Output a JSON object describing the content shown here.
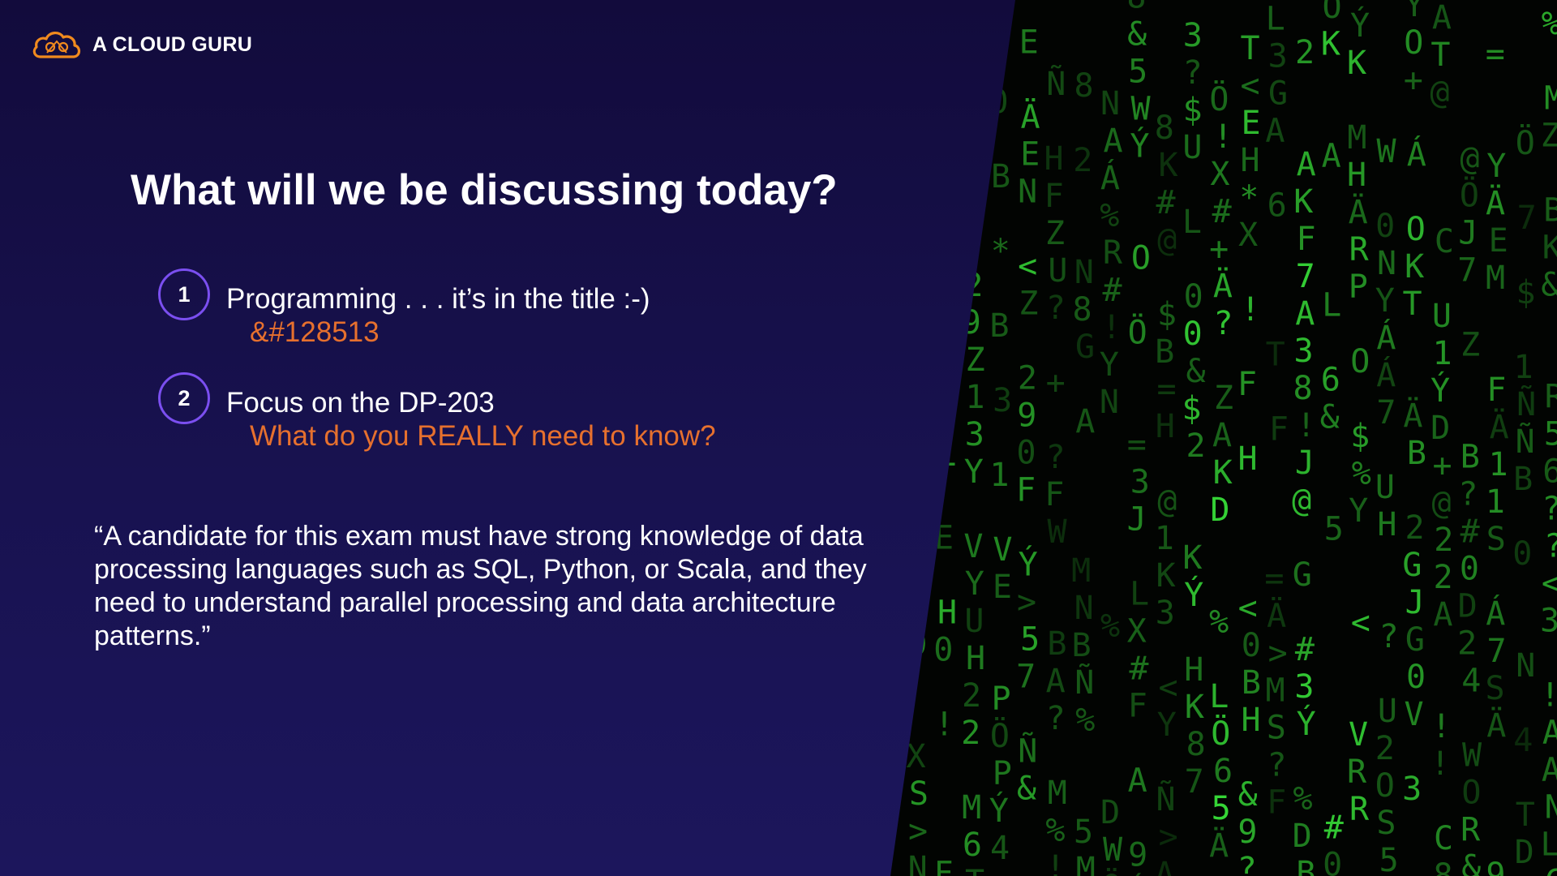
{
  "brand": {
    "name": "A CLOUD GURU",
    "icon": "cloud-logo-icon",
    "accent_color": "#f08a1e"
  },
  "slide": {
    "title": "What will we be discussing today?",
    "items": [
      {
        "number": "1",
        "text": "Programming . . . it’s in the title :-)",
        "subtext": "&#128513"
      },
      {
        "number": "2",
        "text": "Focus on the DP-203",
        "subtext": "What do you REALLY need to know?"
      }
    ],
    "quote": "“A candidate for this exam must have strong knowledge of data processing languages such as SQL, Python, or Scala, and they need to understand parallel processing and data architecture patterns.”"
  },
  "colors": {
    "background": "#181250",
    "circle_border": "#7b4ff0",
    "highlight": "#e6702e",
    "matrix_green": "#39e33a"
  },
  "decor": {
    "matrix_image": "matrix-code-rain"
  }
}
